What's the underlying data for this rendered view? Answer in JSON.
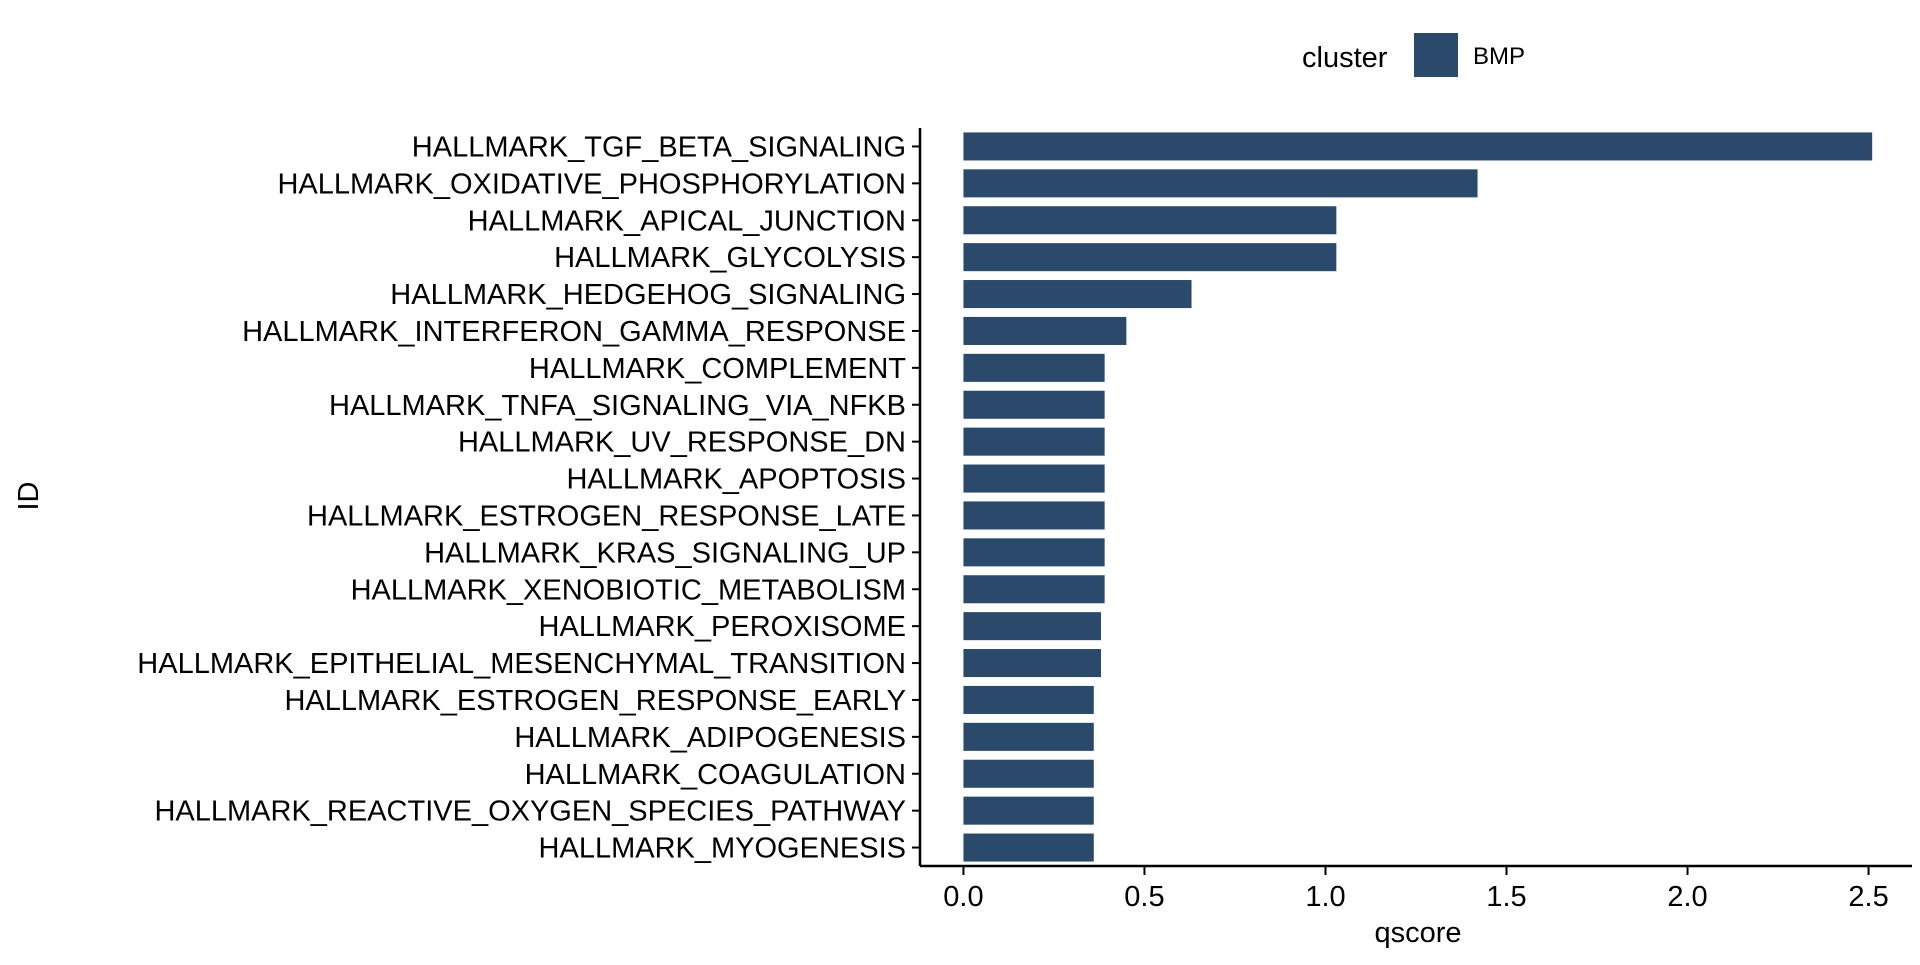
{
  "colors": {
    "bar": "#2b4a6b",
    "axis": "#000000",
    "background": "#ffffff"
  },
  "chart_data": {
    "type": "bar",
    "orientation": "horizontal",
    "title": "",
    "xlabel": "qscore",
    "ylabel": "ID",
    "xlim": [
      -0.12,
      2.62
    ],
    "xticks": [
      0.0,
      0.5,
      1.0,
      1.5,
      2.0,
      2.5
    ],
    "xtick_labels": [
      "0.0",
      "0.5",
      "1.0",
      "1.5",
      "2.0",
      "2.5"
    ],
    "grid": false,
    "legend": {
      "title": "cluster",
      "position": "top",
      "entries": [
        "BMP"
      ]
    },
    "categories": [
      "HALLMARK_TGF_BETA_SIGNALING",
      "HALLMARK_OXIDATIVE_PHOSPHORYLATION",
      "HALLMARK_APICAL_JUNCTION",
      "HALLMARK_GLYCOLYSIS",
      "HALLMARK_HEDGEHOG_SIGNALING",
      "HALLMARK_INTERFERON_GAMMA_RESPONSE",
      "HALLMARK_COMPLEMENT",
      "HALLMARK_TNFA_SIGNALING_VIA_NFKB",
      "HALLMARK_UV_RESPONSE_DN",
      "HALLMARK_APOPTOSIS",
      "HALLMARK_ESTROGEN_RESPONSE_LATE",
      "HALLMARK_KRAS_SIGNALING_UP",
      "HALLMARK_XENOBIOTIC_METABOLISM",
      "HALLMARK_PEROXISOME",
      "HALLMARK_EPITHELIAL_MESENCHYMAL_TRANSITION",
      "HALLMARK_ESTROGEN_RESPONSE_EARLY",
      "HALLMARK_ADIPOGENESIS",
      "HALLMARK_COAGULATION",
      "HALLMARK_REACTIVE_OXYGEN_SPECIES_PATHWAY",
      "HALLMARK_MYOGENESIS"
    ],
    "series": [
      {
        "name": "BMP",
        "values": [
          2.51,
          1.42,
          1.03,
          1.03,
          0.63,
          0.45,
          0.39,
          0.39,
          0.39,
          0.39,
          0.39,
          0.39,
          0.39,
          0.38,
          0.38,
          0.36,
          0.36,
          0.36,
          0.36,
          0.36
        ]
      }
    ]
  }
}
